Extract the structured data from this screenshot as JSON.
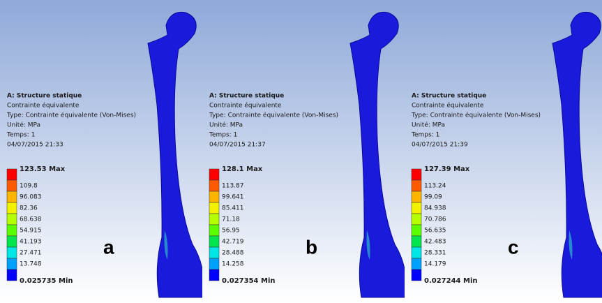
{
  "panels": [
    {
      "header": {
        "title": "A: Structure statique",
        "lines": [
          "Contrainte équivalente",
          "Type: Contrainte équivalente (Von-Mises)",
          "Unité: MPa",
          "Temps: 1",
          "04/07/2015 21:33"
        ]
      },
      "legend": [
        "123.53 Max",
        "109.8",
        "96.083",
        "82.36",
        "68.638",
        "54.915",
        "41.193",
        "27.471",
        "13.748",
        "0.025735 Min"
      ],
      "label": "a"
    },
    {
      "header": {
        "title": "A: Structure statique",
        "lines": [
          "Contrainte équivalente",
          "Type: Contrainte équivalente (Von-Mises)",
          "Unité: MPa",
          "Temps: 1",
          "04/07/2015 21:37"
        ]
      },
      "legend": [
        "128.1 Max",
        "113.87",
        "99.641",
        "85.411",
        "71.18",
        "56.95",
        "42.719",
        "28.488",
        "14.258",
        "0.027354 Min"
      ],
      "label": "b"
    },
    {
      "header": {
        "title": "A: Structure statique",
        "lines": [
          "Contrainte équivalente",
          "Type: Contrainte équivalente (Von-Mises)",
          "Unité: MPa",
          "Temps: 1",
          "04/07/2015 21:39"
        ]
      },
      "legend": [
        "127.39 Max",
        "113.24",
        "99.09",
        "84.938",
        "70.786",
        "56.635",
        "42.483",
        "28.331",
        "14.179",
        "0.027244 Min"
      ],
      "label": "c"
    }
  ]
}
